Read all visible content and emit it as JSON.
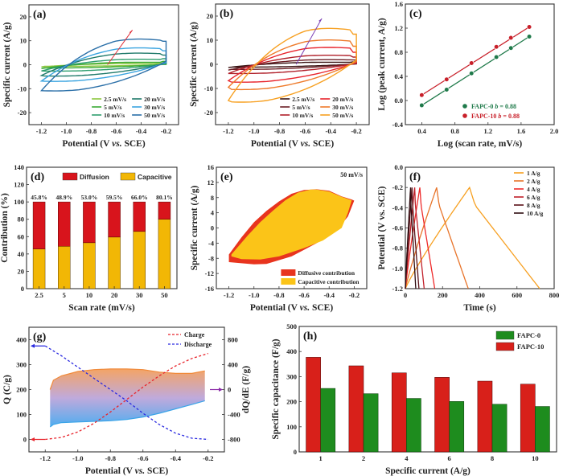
{
  "chart_data": [
    {
      "id": "a",
      "type": "line",
      "panel_label": "(a)",
      "xlabel": "Potential (V vs. SCE)",
      "ylabel": "Specific current (A/g)",
      "xlim": [
        -1.3,
        -0.1
      ],
      "ylim": [
        -25,
        25
      ],
      "xticks": [
        -1.2,
        -1.0,
        -0.8,
        -0.6,
        -0.4,
        -0.2
      ],
      "yticks": [
        -20,
        -10,
        0,
        10,
        20
      ],
      "annotation": "arrow indicating increasing scan rate",
      "arrow_color": "#e0303a",
      "series": [
        {
          "name": "2.5 mV/s",
          "color": "#8cc63f",
          "peak_anodic": 0.6,
          "min_cathodic": -0.7,
          "end_upper": 0.8,
          "start_lower": -0.9
        },
        {
          "name": "5 mV/s",
          "color": "#3aaa35",
          "peak_anodic": 1.2,
          "min_cathodic": -1.4,
          "end_upper": 1.4,
          "start_lower": -1.6
        },
        {
          "name": "10 mV/s",
          "color": "#2e9e6e",
          "peak_anodic": 2.6,
          "min_cathodic": -2.8,
          "end_upper": 2.5,
          "start_lower": -2.6
        },
        {
          "name": "20 mV/s",
          "color": "#1f7a6a",
          "peak_anodic": 5.5,
          "min_cathodic": -5.0,
          "end_upper": 4.0,
          "start_lower": -4.5
        },
        {
          "name": "30 mV/s",
          "color": "#3aa4e0",
          "peak_anodic": 8.0,
          "min_cathodic": -7.3,
          "end_upper": 5.8,
          "start_lower": -6.8
        },
        {
          "name": "50 mV/s",
          "color": "#2a6fa8",
          "peak_anodic": 12.2,
          "min_cathodic": -11.5,
          "end_upper": 9.8,
          "start_lower": -10.8
        }
      ]
    },
    {
      "id": "b",
      "type": "line",
      "panel_label": "(b)",
      "xlabel": "Potential (V vs. SCE)",
      "ylabel": "Specific current (A/g)",
      "xlim": [
        -1.3,
        -0.1
      ],
      "ylim": [
        -25,
        25
      ],
      "xticks": [
        -1.2,
        -1.0,
        -0.8,
        -0.6,
        -0.4,
        -0.2
      ],
      "yticks": [
        -20,
        -10,
        0,
        10,
        20
      ],
      "annotation": "arrow indicating increasing scan rate",
      "arrow_color": "#7b3fb5",
      "series": [
        {
          "name": "2.5 mV/s",
          "color": "#3a1414",
          "peak_anodic": 1.0,
          "min_cathodic": -1.2,
          "end_upper": 1.0,
          "start_lower": -1.3
        },
        {
          "name": "5 mV/s",
          "color": "#6b1e24",
          "peak_anodic": 2.2,
          "min_cathodic": -2.2,
          "end_upper": 1.8,
          "start_lower": -2.4
        },
        {
          "name": "10 mV/s",
          "color": "#b0202a",
          "peak_anodic": 4.3,
          "min_cathodic": -4.0,
          "end_upper": 3.0,
          "start_lower": -3.8
        },
        {
          "name": "20 mV/s",
          "color": "#e8242c",
          "peak_anodic": 8.0,
          "min_cathodic": -7.8,
          "end_upper": 5.0,
          "start_lower": -6.8
        },
        {
          "name": "30 mV/s",
          "color": "#ee7a2a",
          "peak_anodic": 11.5,
          "min_cathodic": -11.0,
          "end_upper": 7.5,
          "start_lower": -9.5
        },
        {
          "name": "50 mV/s",
          "color": "#f7a021",
          "peak_anodic": 17.0,
          "min_cathodic": -16.5,
          "end_upper": 12.5,
          "start_lower": -15.0
        }
      ]
    },
    {
      "id": "c",
      "type": "scatter",
      "panel_label": "(c)",
      "xlabel": "Log (scan rate, mV/s)",
      "ylabel": "Log (peak current, A/g)",
      "xlim": [
        0.2,
        2.0
      ],
      "ylim": [
        -0.4,
        1.6
      ],
      "xticks": [
        0.4,
        0.8,
        1.2,
        1.6,
        2.0
      ],
      "yticks": [
        -0.4,
        0.0,
        0.4,
        0.8,
        1.2,
        1.6
      ],
      "series": [
        {
          "name": "FAPC-0",
          "b_label": "b = 0.88",
          "color": "#1f7a4a",
          "x": [
            0.398,
            0.699,
            1.0,
            1.301,
            1.477,
            1.699
          ],
          "y": [
            -0.08,
            0.18,
            0.45,
            0.72,
            0.87,
            1.06
          ]
        },
        {
          "name": "FAPC-10",
          "b_label": "b = 0.88",
          "color": "#c8202a",
          "x": [
            0.398,
            0.699,
            1.0,
            1.301,
            1.477,
            1.699
          ],
          "y": [
            0.09,
            0.35,
            0.62,
            0.89,
            1.04,
            1.22
          ]
        }
      ],
      "legend_position": "bottom-right"
    },
    {
      "id": "d",
      "type": "bar",
      "panel_label": "(d)",
      "xlabel": "Scan rate (mV/s)",
      "ylabel": "Contribution (%)",
      "ylim": [
        0,
        140
      ],
      "yticks": [
        0,
        20,
        40,
        60,
        80,
        100,
        120,
        140
      ],
      "categories": [
        "2.5",
        "5",
        "10",
        "20",
        "30",
        "50"
      ],
      "series": [
        {
          "name": "Capacitive",
          "color": "#f2b705",
          "values": [
            45.8,
            48.9,
            53.0,
            59.5,
            66.0,
            80.1
          ]
        },
        {
          "name": "Diffusion",
          "color": "#d8141c",
          "values": [
            54.2,
            51.1,
            47.0,
            40.5,
            34.0,
            19.9
          ]
        }
      ],
      "data_labels": [
        "45.8%",
        "48.9%",
        "53.0%",
        "59.5%",
        "66.0%",
        "80.1%"
      ],
      "stacked": true,
      "legend_position": "top"
    },
    {
      "id": "e",
      "type": "area",
      "panel_label": "(e)",
      "annotation": "50 mV/s",
      "xlabel": "Potential (V vs. SCE)",
      "ylabel": "Specific current (A/g)",
      "xlim": [
        -1.3,
        -0.1
      ],
      "ylim": [
        -16,
        16
      ],
      "xticks": [
        -1.2,
        -1.0,
        -0.8,
        -0.6,
        -0.4,
        -0.2
      ],
      "yticks": [
        -16,
        -12,
        -8,
        -4,
        0,
        4,
        8,
        12,
        16
      ],
      "series": [
        {
          "name": "Diffusive contribution",
          "color": "#e8341e"
        },
        {
          "name": "Capacitive contribution",
          "color": "#fbc418"
        }
      ],
      "legend_position": "bottom-right"
    },
    {
      "id": "f",
      "type": "line",
      "panel_label": "(f)",
      "xlabel": "Time (s)",
      "ylabel": "Potential (V vs. SCE)",
      "xlim": [
        0,
        800
      ],
      "ylim": [
        -1.2,
        0.0
      ],
      "xticks": [
        0,
        200,
        400,
        600,
        800
      ],
      "yticks": [
        -1.2,
        -1.0,
        -0.8,
        -0.6,
        -0.4,
        -0.2,
        0.0
      ],
      "series": [
        {
          "name": "1 A/g",
          "color": "#f7a021",
          "t_charge": 345,
          "t_end": 722
        },
        {
          "name": "2 A/g",
          "color": "#e8742a",
          "t_charge": 168,
          "t_end": 338
        },
        {
          "name": "4 A/g",
          "color": "#ee2a2a",
          "t_charge": 78,
          "t_end": 158
        },
        {
          "name": "6 A/g",
          "color": "#c0202a",
          "t_charge": 50,
          "t_end": 101
        },
        {
          "name": "8 A/g",
          "color": "#5a1218",
          "t_charge": 36,
          "t_end": 73
        },
        {
          "name": "10 A/g",
          "color": "#2e0c10",
          "t_charge": 28,
          "t_end": 56
        }
      ],
      "legend_position": "top-right"
    },
    {
      "id": "g",
      "type": "line",
      "panel_label": "(g)",
      "xlabel": "Potential (V vs. SCE)",
      "ylabel": "Q (C/g)",
      "y2label": "dQ/dE (F/g)",
      "xlim": [
        -1.3,
        -0.1
      ],
      "ylim": [
        -50,
        450
      ],
      "y2lim": [
        -1000,
        1000
      ],
      "xticks": [
        -1.2,
        -1.0,
        -0.8,
        -0.6,
        -0.4,
        -0.2
      ],
      "yticks": [
        0,
        100,
        200,
        300,
        400
      ],
      "y2ticks": [
        -800,
        -400,
        0,
        400,
        800
      ],
      "series": [
        {
          "name": "Charge",
          "color": "#e8242c",
          "style": "dashed",
          "x": [
            -1.2,
            -1.1,
            -1.0,
            -0.9,
            -0.8,
            -0.7,
            -0.6,
            -0.5,
            -0.4,
            -0.3,
            -0.2
          ],
          "y": [
            0,
            8,
            30,
            65,
            110,
            160,
            210,
            255,
            295,
            325,
            345
          ]
        },
        {
          "name": "Discharge",
          "color": "#2a2ae0",
          "style": "dashed",
          "x": [
            -1.2,
            -1.1,
            -1.0,
            -0.9,
            -0.8,
            -0.7,
            -0.6,
            -0.5,
            -0.4,
            -0.3,
            -0.2
          ],
          "y": [
            375,
            335,
            290,
            245,
            200,
            155,
            105,
            60,
            25,
            5,
            0
          ]
        },
        {
          "name": "dQ/dE upper",
          "color": "#f08a3a",
          "axis": "right",
          "x": [
            -1.17,
            -1.15,
            -1.1,
            -1.0,
            -0.9,
            -0.8,
            -0.7,
            -0.6,
            -0.5,
            -0.4,
            -0.3,
            -0.22
          ],
          "y": [
            0,
            150,
            220,
            290,
            320,
            330,
            330,
            320,
            280,
            260,
            260,
            300
          ]
        },
        {
          "name": "dQ/dE lower",
          "color": "#3aa4e8",
          "axis": "right",
          "x": [
            -1.17,
            -1.15,
            -1.1,
            -1.0,
            -0.9,
            -0.8,
            -0.7,
            -0.6,
            -0.5,
            -0.4,
            -0.3,
            -0.22
          ],
          "y": [
            -600,
            -560,
            -530,
            -520,
            -510,
            -500,
            -480,
            -440,
            -380,
            -310,
            -240,
            -180
          ]
        }
      ],
      "legend_position": "top-right"
    },
    {
      "id": "h",
      "type": "bar",
      "panel_label": "(h)",
      "xlabel": "Specific current (A/g)",
      "ylabel": "Specific capacitance (F/g)",
      "ylim": [
        0,
        500
      ],
      "yticks": [
        0,
        100,
        200,
        300,
        400,
        500
      ],
      "categories": [
        "1",
        "2",
        "4",
        "6",
        "8",
        "10"
      ],
      "series": [
        {
          "name": "FAPC-0",
          "color": "#1e8c1e",
          "values": [
            253,
            232,
            213,
            201,
            190,
            181
          ]
        },
        {
          "name": "FAPC-10",
          "color": "#d8201a",
          "values": [
            377,
            343,
            315,
            297,
            282,
            270
          ]
        }
      ],
      "legend_position": "top-right"
    }
  ]
}
